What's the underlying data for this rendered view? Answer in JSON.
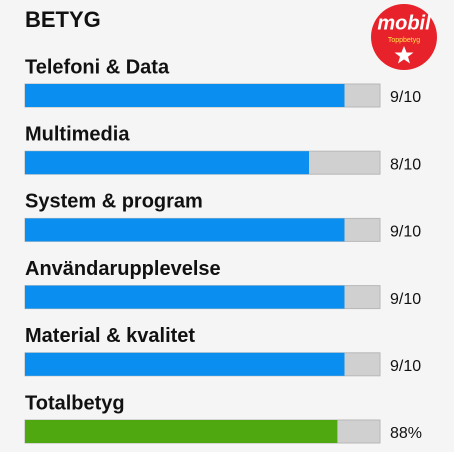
{
  "title": "BETYG",
  "badge": {
    "brand": "mobil",
    "text": "Toppbetyg",
    "color": "#e8222a"
  },
  "track_color": "#d0d0d0",
  "ratings": [
    {
      "label": "Telefoni & Data",
      "value": 9,
      "value_label": "9/10",
      "xlim": [
        0,
        10
      ],
      "color": "#0a8ff0"
    },
    {
      "label": "Multimedia",
      "value": 8,
      "value_label": "8/10",
      "xlim": [
        0,
        10
      ],
      "color": "#0a8ff0"
    },
    {
      "label": "System & program",
      "value": 9,
      "value_label": "9/10",
      "xlim": [
        0,
        10
      ],
      "color": "#0a8ff0"
    },
    {
      "label": "Användarupplevelse",
      "value": 9,
      "value_label": "9/10",
      "xlim": [
        0,
        10
      ],
      "color": "#0a8ff0"
    },
    {
      "label": "Material & kvalitet",
      "value": 9,
      "value_label": "9/10",
      "xlim": [
        0,
        10
      ],
      "color": "#0a8ff0"
    },
    {
      "label": "Totalbetyg",
      "value": 88,
      "value_label": "88%",
      "xlim": [
        0,
        100
      ],
      "color": "#4fa80f"
    }
  ]
}
